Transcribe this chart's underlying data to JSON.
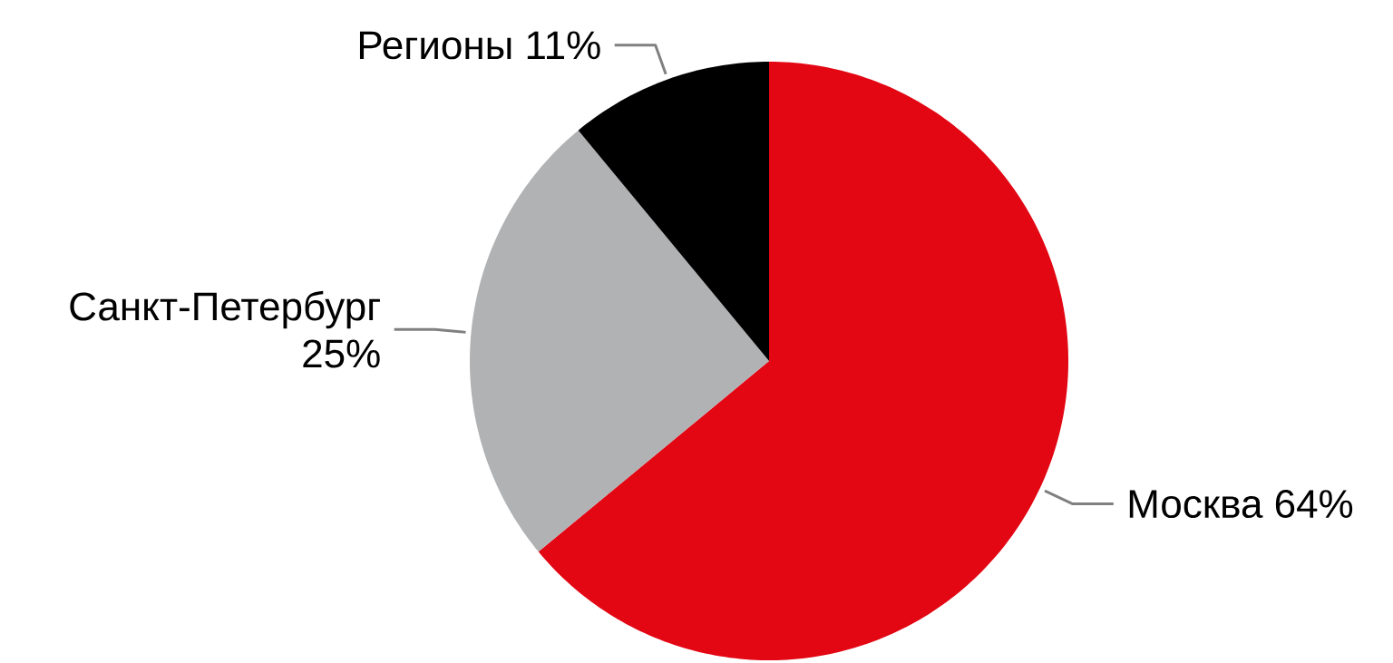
{
  "chart_data": {
    "type": "pie",
    "categories": [
      "Москва",
      "Санкт-Петербург",
      "Регионы"
    ],
    "values": [
      64,
      25,
      11
    ],
    "value_labels": [
      "64%",
      "25%",
      "11%"
    ],
    "colors": [
      "#e30613",
      "#b1b2b4",
      "#000000"
    ]
  }
}
